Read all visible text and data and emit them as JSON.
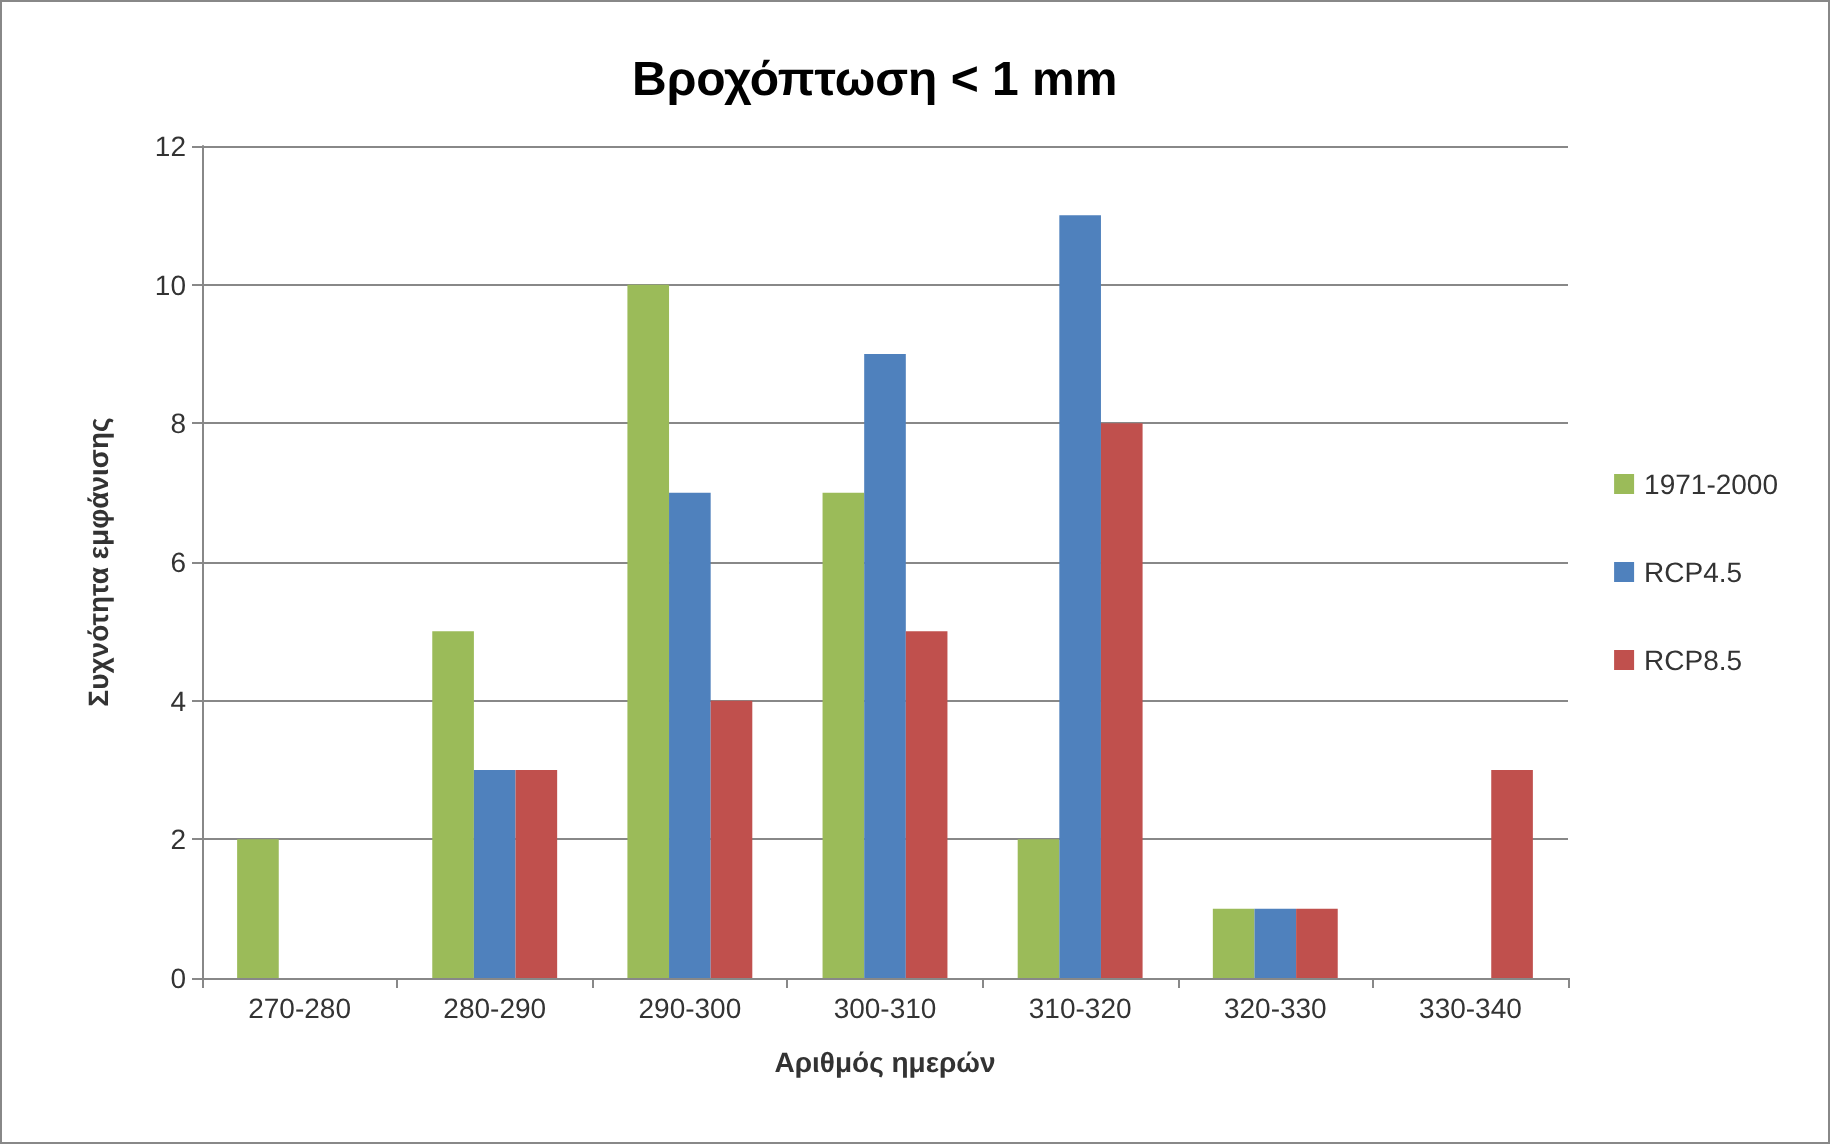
{
  "chart_data": {
    "type": "bar",
    "title": "Βροχόπτωση < 1 mm",
    "xlabel": "Αριθμός ημερών",
    "ylabel": "Συχνότητα εμφάνισης",
    "categories": [
      "270-280",
      "280-290",
      "290-300",
      "300-310",
      "310-320",
      "320-330",
      "330-340"
    ],
    "series": [
      {
        "name": "1971-2000",
        "color": "#9bbb59",
        "values": [
          2,
          5,
          10,
          7,
          2,
          1,
          0
        ]
      },
      {
        "name": "RCP4.5",
        "color": "#4f81bd",
        "values": [
          0,
          3,
          7,
          9,
          11,
          1,
          0
        ]
      },
      {
        "name": "RCP8.5",
        "color": "#c0504d",
        "values": [
          0,
          3,
          4,
          5,
          8,
          1,
          3
        ]
      }
    ],
    "ylim": [
      0,
      12
    ],
    "yticks": [
      0,
      2,
      4,
      6,
      8,
      10,
      12
    ],
    "grid": "y",
    "legend": "right"
  }
}
